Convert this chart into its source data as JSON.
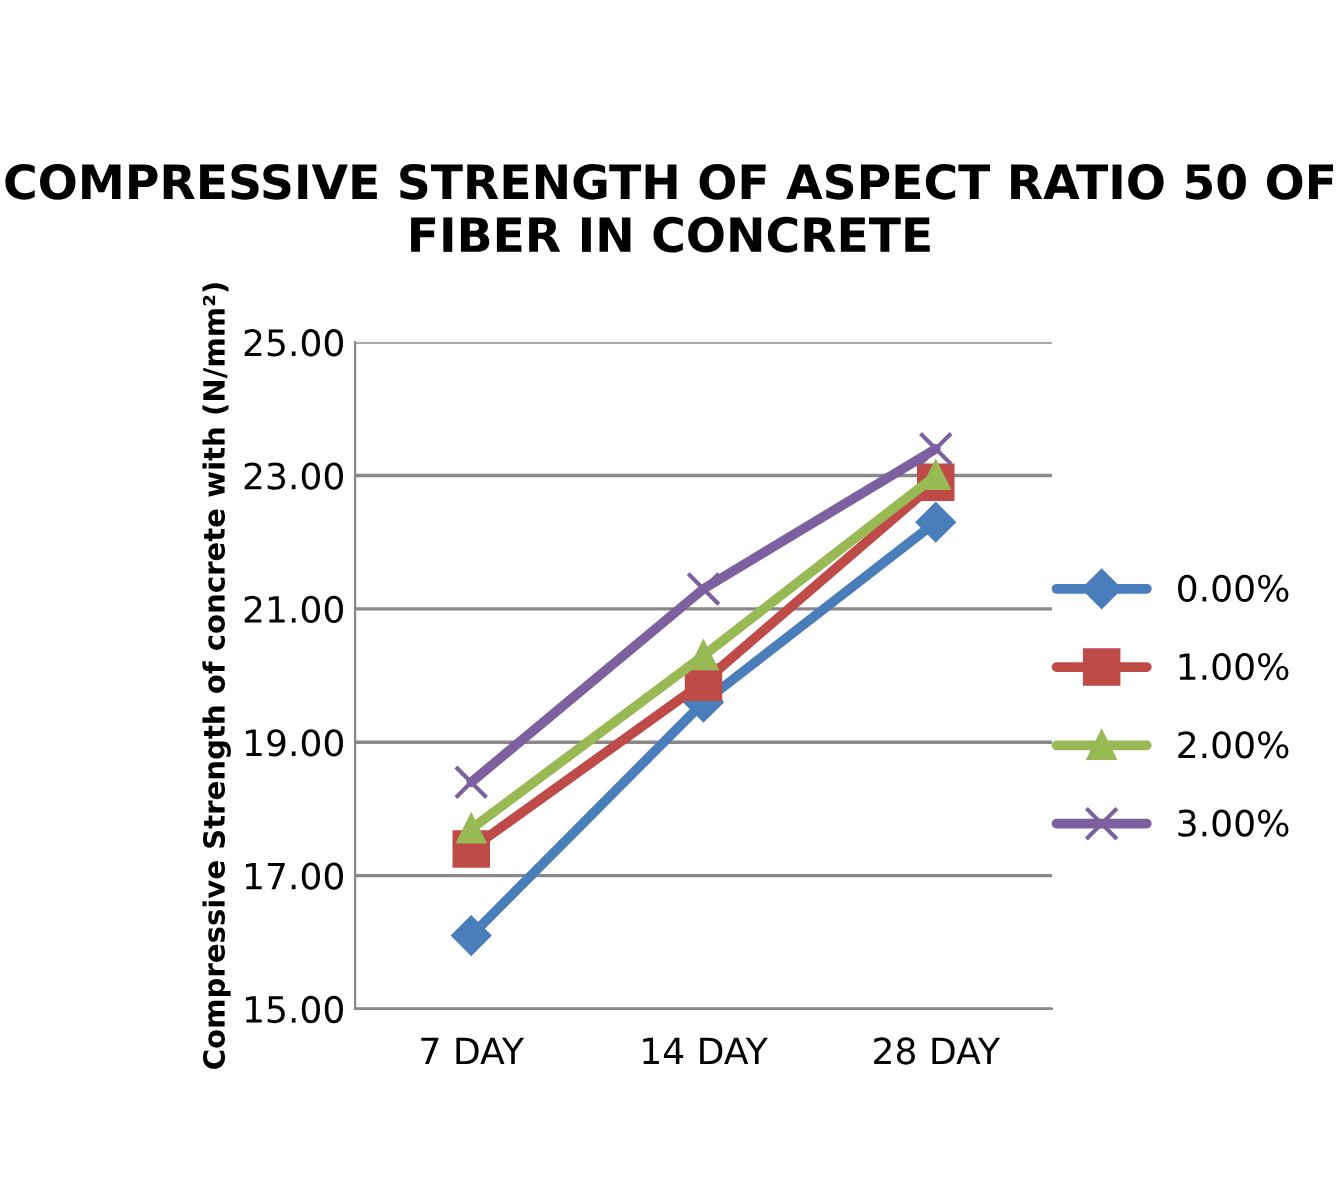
{
  "chart_data": {
    "type": "line",
    "title": "COMPRESSIVE STRENGTH OF ASPECT RATIO 50 OF FIBER IN CONCRETE",
    "ylabel": "Compressive Strength of concrete with (N/mm²)",
    "categories": [
      "7 DAY",
      "14 DAY",
      "28 DAY"
    ],
    "series": [
      {
        "name": "0.00%",
        "color": "#4a7ebb",
        "marker": "diamond",
        "values": [
          16.1,
          19.6,
          22.3
        ]
      },
      {
        "name": "1.00%",
        "color": "#be4b48",
        "marker": "square",
        "values": [
          17.4,
          19.9,
          22.9
        ]
      },
      {
        "name": "2.00%",
        "color": "#98b954",
        "marker": "triangle",
        "values": [
          17.7,
          20.3,
          23.0
        ]
      },
      {
        "name": "3.00%",
        "color": "#7d60a0",
        "marker": "cross",
        "values": [
          18.4,
          21.3,
          23.4
        ]
      }
    ],
    "ylim": [
      15,
      25
    ],
    "yticks": [
      {
        "value": 15,
        "label": "15.00"
      },
      {
        "value": 17,
        "label": "17.00"
      },
      {
        "value": 19,
        "label": "19.00"
      },
      {
        "value": 21,
        "label": "21.00"
      },
      {
        "value": 23,
        "label": "23.00"
      },
      {
        "value": 25,
        "label": "25.00"
      }
    ],
    "grid": "y",
    "legend": "right",
    "line_style": "solid"
  }
}
